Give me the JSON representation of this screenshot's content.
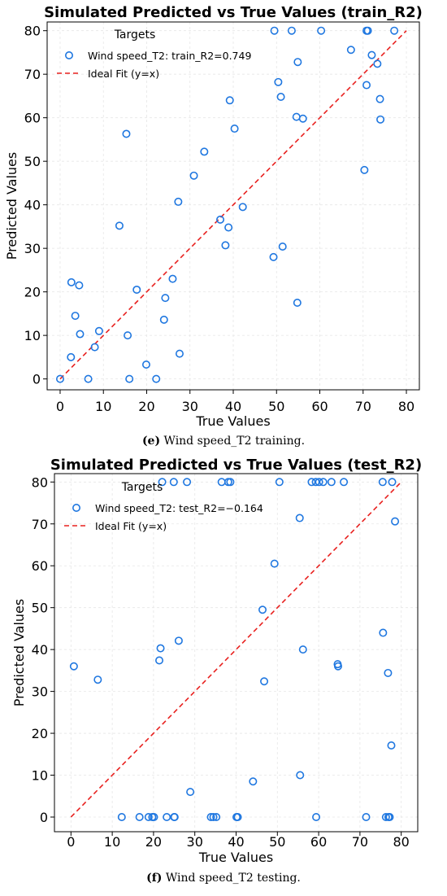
{
  "chart_data": [
    {
      "type": "scatter",
      "title": "Simulated Predicted vs True Values (train_R2)",
      "xlabel": "True Values",
      "ylabel": "Predicted Values",
      "xlim": [
        -3,
        83
      ],
      "ylim": [
        -2.5,
        82
      ],
      "xticks": [
        0,
        10,
        20,
        30,
        40,
        50,
        60,
        70,
        80
      ],
      "yticks": [
        0,
        10,
        20,
        30,
        40,
        50,
        60,
        70,
        80
      ],
      "grid": true,
      "legend": {
        "title": "Targets",
        "placement": "top-left"
      },
      "series": [
        {
          "name": "Wind speed_T2: train_R2=0.749",
          "marker": "hollow-circle",
          "color": "#1f77e0",
          "points": [
            [
              0,
              0
            ],
            [
              2.5,
              5
            ],
            [
              2.6,
              22.2
            ],
            [
              3.5,
              14.5
            ],
            [
              4.4,
              21.5
            ],
            [
              4.6,
              10.3
            ],
            [
              6.5,
              0
            ],
            [
              8,
              7.3
            ],
            [
              9,
              11
            ],
            [
              13.7,
              35.2
            ],
            [
              15.3,
              56.3
            ],
            [
              15.6,
              10
            ],
            [
              16,
              0
            ],
            [
              17.7,
              20.5
            ],
            [
              19.9,
              3.3
            ],
            [
              22.2,
              0
            ],
            [
              24,
              13.6
            ],
            [
              24.3,
              18.6
            ],
            [
              26,
              23
            ],
            [
              27.3,
              40.7
            ],
            [
              27.6,
              5.8
            ],
            [
              30.9,
              46.7
            ],
            [
              33.3,
              52.2
            ],
            [
              37,
              36.6
            ],
            [
              38.2,
              30.7
            ],
            [
              38.9,
              34.8
            ],
            [
              39.2,
              64
            ],
            [
              40.3,
              57.5
            ],
            [
              42.2,
              39.5
            ],
            [
              49.3,
              28
            ],
            [
              49.5,
              80
            ],
            [
              50.4,
              68.2
            ],
            [
              51,
              64.8
            ],
            [
              51.4,
              30.4
            ],
            [
              53.5,
              80
            ],
            [
              54.6,
              60.2
            ],
            [
              54.8,
              17.5
            ],
            [
              54.9,
              72.8
            ],
            [
              56.1,
              59.8
            ],
            [
              60.3,
              80
            ],
            [
              67.2,
              75.6
            ],
            [
              70.3,
              48
            ],
            [
              70.8,
              80
            ],
            [
              70.8,
              67.5
            ],
            [
              71.1,
              80
            ],
            [
              72,
              74.4
            ],
            [
              73.3,
              72.4
            ],
            [
              73.9,
              64.3
            ],
            [
              74,
              59.6
            ],
            [
              77.2,
              80
            ]
          ]
        },
        {
          "name": "Ideal Fit (y=x)",
          "style": "dashed-line",
          "color": "#e8211f",
          "x": [
            0,
            80
          ],
          "y": [
            0,
            80
          ]
        }
      ]
    },
    {
      "type": "scatter",
      "title": "Simulated Predicted vs True Values (test_R2)",
      "xlabel": "True Values",
      "ylabel": "Predicted Values",
      "xlim": [
        -4,
        84
      ],
      "ylim": [
        -3.5,
        82
      ],
      "xticks": [
        0,
        10,
        20,
        30,
        40,
        50,
        60,
        70,
        80
      ],
      "yticks": [
        0,
        10,
        20,
        30,
        40,
        50,
        60,
        70,
        80
      ],
      "grid": true,
      "legend": {
        "title": "Targets",
        "placement": "top-left"
      },
      "series": [
        {
          "name": "Wind speed_T2: test_R2=−0.164",
          "marker": "hollow-circle",
          "color": "#1f77e0",
          "points": [
            [
              0.7,
              36
            ],
            [
              6.5,
              32.8
            ],
            [
              12.3,
              0
            ],
            [
              16.6,
              0
            ],
            [
              18.8,
              0
            ],
            [
              19.7,
              0
            ],
            [
              20.1,
              0
            ],
            [
              21.4,
              37.4
            ],
            [
              21.7,
              40.3
            ],
            [
              22.1,
              80
            ],
            [
              23.2,
              0
            ],
            [
              24.9,
              80
            ],
            [
              25,
              0
            ],
            [
              25.1,
              0
            ],
            [
              26.1,
              42.1
            ],
            [
              28.1,
              80
            ],
            [
              28.9,
              6
            ],
            [
              33.9,
              0
            ],
            [
              34.5,
              0
            ],
            [
              35.2,
              0
            ],
            [
              36.5,
              80
            ],
            [
              38.1,
              80
            ],
            [
              38.6,
              80
            ],
            [
              40.1,
              0
            ],
            [
              40.4,
              0
            ],
            [
              44.1,
              8.5
            ],
            [
              46.4,
              49.5
            ],
            [
              46.8,
              32.4
            ],
            [
              49.3,
              60.5
            ],
            [
              50.5,
              80
            ],
            [
              55.4,
              71.4
            ],
            [
              55.5,
              10
            ],
            [
              56.2,
              40
            ],
            [
              58.3,
              80
            ],
            [
              59.3,
              80
            ],
            [
              59.4,
              0
            ],
            [
              60.1,
              80
            ],
            [
              61.1,
              80
            ],
            [
              63.1,
              80
            ],
            [
              64.6,
              36.5
            ],
            [
              64.7,
              36
            ],
            [
              66.1,
              80
            ],
            [
              71.5,
              0
            ],
            [
              75.5,
              80
            ],
            [
              75.6,
              44
            ],
            [
              76.3,
              0
            ],
            [
              76.8,
              34.4
            ],
            [
              76.9,
              0
            ],
            [
              77.2,
              0
            ],
            [
              77.6,
              17.1
            ],
            [
              77.8,
              80
            ],
            [
              78.5,
              70.6
            ]
          ]
        },
        {
          "name": "Ideal Fit (y=x)",
          "style": "dashed-line",
          "color": "#e8211f",
          "x": [
            0,
            80
          ],
          "y": [
            0,
            80
          ]
        }
      ]
    }
  ],
  "captions": [
    {
      "label": "(e)",
      "text": "Wind speed_T2 training."
    },
    {
      "label": "(f)",
      "text": "Wind speed_T2 testing."
    }
  ]
}
